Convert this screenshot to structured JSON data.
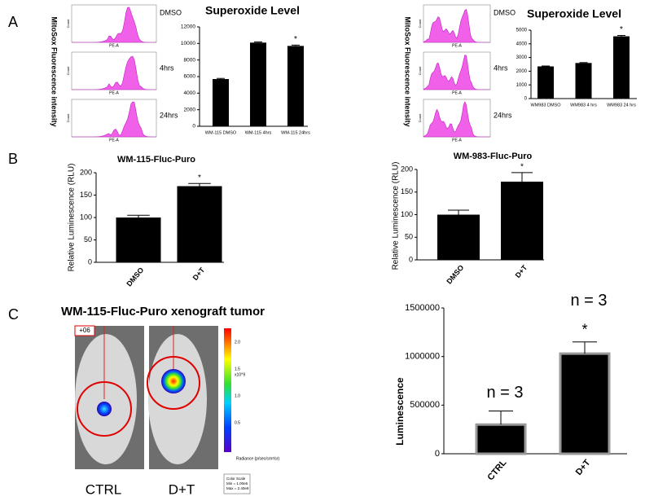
{
  "panels": [
    "A",
    "B",
    "C"
  ],
  "flow": {
    "ylabel": "MitoSox Fluorescence intensity",
    "count_label": "Count",
    "x_label": "PE-A",
    "left": [
      "DMSO",
      "4hrs",
      "24hrs"
    ],
    "right": [
      "DMSO",
      "4hrs",
      "24hrs"
    ]
  },
  "xenograft": {
    "title": "WM-115-Fluc-Puro xenograft tumor",
    "groups": [
      "CTRL",
      "D+T"
    ],
    "corner_label": "+06",
    "colorbar": {
      "labels": [
        "2.0",
        "1.5",
        "1.0",
        "0.5"
      ],
      "unit": "x10^9",
      "title": "Radiance (p/sec/cm²/sr)",
      "scale": [
        "Color Scale",
        "Min = 1.00e6",
        "Max = 2.40e9"
      ]
    }
  },
  "chart_data": [
    {
      "type": "bar",
      "title": "Superoxide Level",
      "categories": [
        "WM-115 DMSO",
        "WM-115 4hrs",
        "WM-115 24hrs"
      ],
      "values": [
        5700,
        10100,
        9700
      ],
      "errors": [
        80,
        80,
        100
      ],
      "significance": [
        null,
        null,
        "*"
      ],
      "color": "#000000",
      "ylim": [
        0,
        12000
      ],
      "yticks": [
        0,
        2000,
        4000,
        6000,
        8000,
        10000,
        12000
      ]
    },
    {
      "type": "bar",
      "title": "Superoxide Level",
      "categories": [
        "WM983 DMSO",
        "WM983 4 hrs",
        "WM983 24 hrs"
      ],
      "values": [
        2350,
        2600,
        4550
      ],
      "errors": [
        30,
        30,
        60
      ],
      "significance": [
        null,
        null,
        "*"
      ],
      "color": "#000000",
      "ylim": [
        0,
        5000
      ],
      "yticks": [
        0,
        1000,
        2000,
        3000,
        4000,
        5000
      ]
    },
    {
      "type": "bar",
      "title": "WM-115-Fluc-Puro",
      "ylabel": "Relative Luminescence (RLU)",
      "categories": [
        "DMSO",
        "D+T"
      ],
      "values": [
        100,
        170
      ],
      "errors": [
        5,
        6
      ],
      "significance": [
        null,
        "*"
      ],
      "color": "#000000",
      "ylim": [
        0,
        200
      ],
      "yticks": [
        0,
        50,
        100,
        150,
        200
      ]
    },
    {
      "type": "bar",
      "title": "WM-983-Fluc-Puro",
      "ylabel": "Relative Luminescence (RLU)",
      "categories": [
        "DMSO",
        "D+T"
      ],
      "values": [
        100,
        173
      ],
      "errors": [
        10,
        20
      ],
      "significance": [
        null,
        "*"
      ],
      "color": "#000000",
      "ylim": [
        0,
        200
      ],
      "yticks": [
        0,
        50,
        100,
        150,
        200
      ]
    },
    {
      "type": "bar",
      "ylabel": "Luminescence",
      "categories": [
        "CTRL",
        "D+T"
      ],
      "values": [
        300000,
        1030000
      ],
      "errors": [
        140000,
        120000
      ],
      "annotations": [
        "n = 3",
        "n = 3"
      ],
      "significance": [
        null,
        "*"
      ],
      "color": "#000000",
      "ylim": [
        0,
        1500000
      ],
      "yticks": [
        0,
        500000,
        1000000,
        1500000
      ]
    }
  ]
}
